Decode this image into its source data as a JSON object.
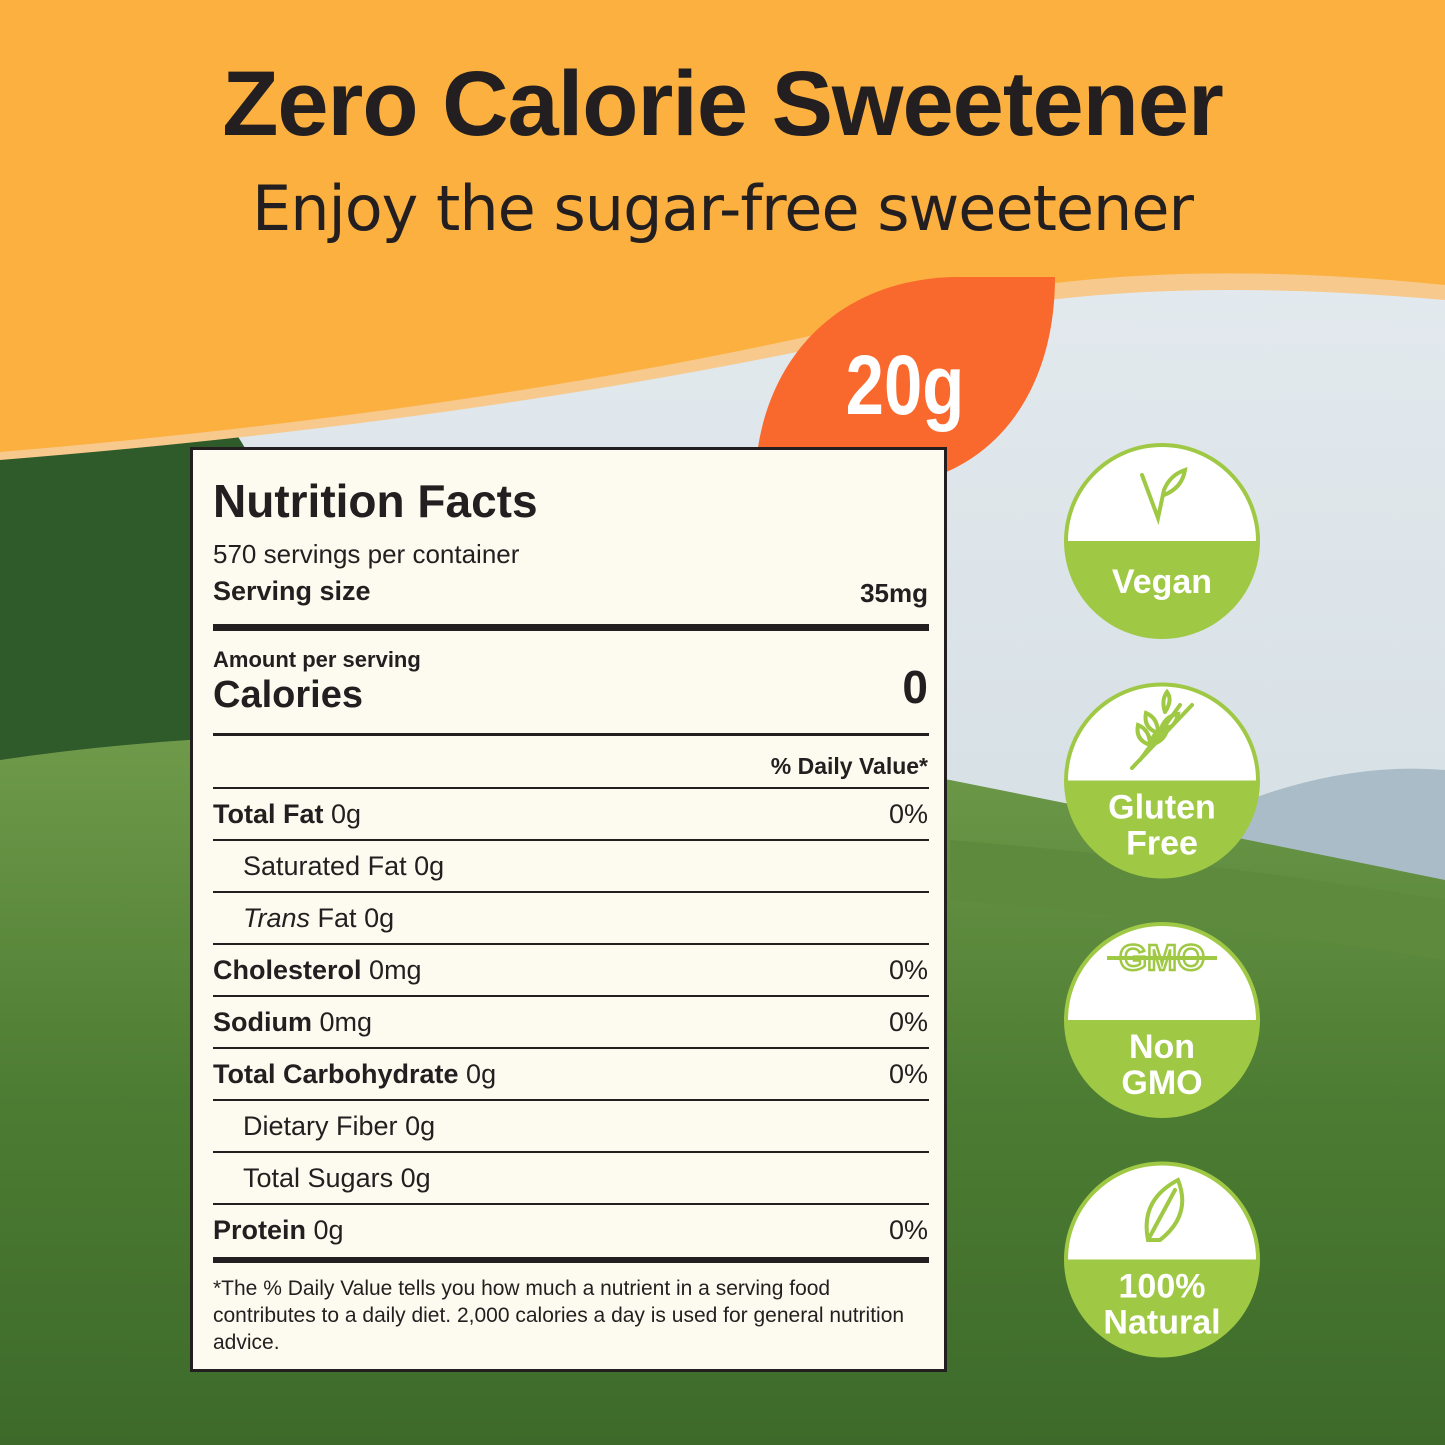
{
  "header": {
    "title": "Zero Calorie Sweetener",
    "subtitle": "Enjoy the sugar-free sweetener"
  },
  "badge": "20g",
  "nutrition": {
    "title": "Nutrition Facts",
    "servings": "570 servings per container",
    "serving_size_label": "Serving size",
    "serving_size": "35mg",
    "amount_label": "Amount per serving",
    "calories_label": "Calories",
    "calories": "0",
    "dv_header": "% Daily Value*",
    "nutrients": [
      {
        "name": "Total Fat",
        "amount": "0g",
        "dv": "0%",
        "sub": [
          {
            "name": "Saturated Fat",
            "amount": "0g"
          },
          {
            "name_italic": "Trans",
            "name": "Fat",
            "amount": "0g"
          }
        ]
      },
      {
        "name": "Cholesterol",
        "amount": "0mg",
        "dv": "0%"
      },
      {
        "name": "Sodium",
        "amount": "0mg",
        "dv": "0%"
      },
      {
        "name": "Total Carbohydrate",
        "amount": "0g",
        "dv": "0%",
        "sub": [
          {
            "name": "Dietary Fiber",
            "amount": "0g"
          },
          {
            "name": "Total Sugars",
            "amount": "0g"
          }
        ]
      },
      {
        "name": "Protein",
        "amount": "0g",
        "dv": "0%"
      }
    ],
    "footnote": "*The % Daily Value tells you how much a nutrient in a serving food contributes to a daily diet. 2,000 calories a day is used for general nutrition advice."
  },
  "features": [
    {
      "label": [
        "Vegan"
      ]
    },
    {
      "label": [
        "Gluten",
        "Free"
      ]
    },
    {
      "icon_text": "GMO",
      "label": [
        "Non",
        "GMO"
      ]
    },
    {
      "label": [
        "100%",
        "Natural"
      ]
    }
  ]
}
